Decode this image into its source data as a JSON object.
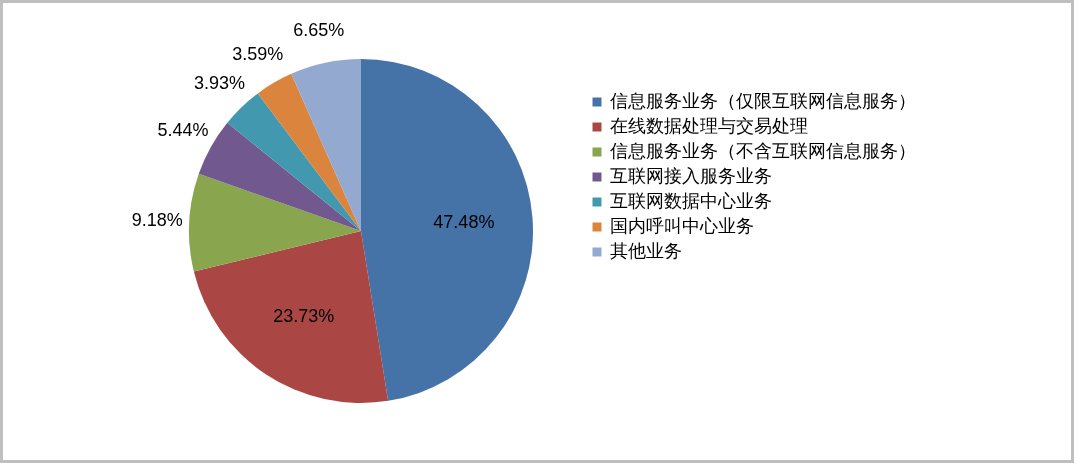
{
  "chart_data": {
    "type": "pie",
    "categories": [
      "信息服务业务（仅限互联网信息服务）",
      "在线数据处理与交易处理",
      "信息服务业务（不含互联网信息服务）",
      "互联网接入服务业务",
      "互联网数据中心业务",
      "国内呼叫中心业务",
      "其他业务"
    ],
    "values": [
      47.48,
      23.73,
      9.18,
      5.44,
      3.93,
      3.59,
      6.65
    ],
    "value_labels": [
      "47.48%",
      "23.73%",
      "9.18%",
      "5.44%",
      "3.93%",
      "3.59%",
      "6.65%"
    ],
    "colors": [
      "#4572a7",
      "#aa4643",
      "#89a54e",
      "#71588f",
      "#4198af",
      "#db843d",
      "#93a9cf"
    ],
    "legend": "right"
  }
}
